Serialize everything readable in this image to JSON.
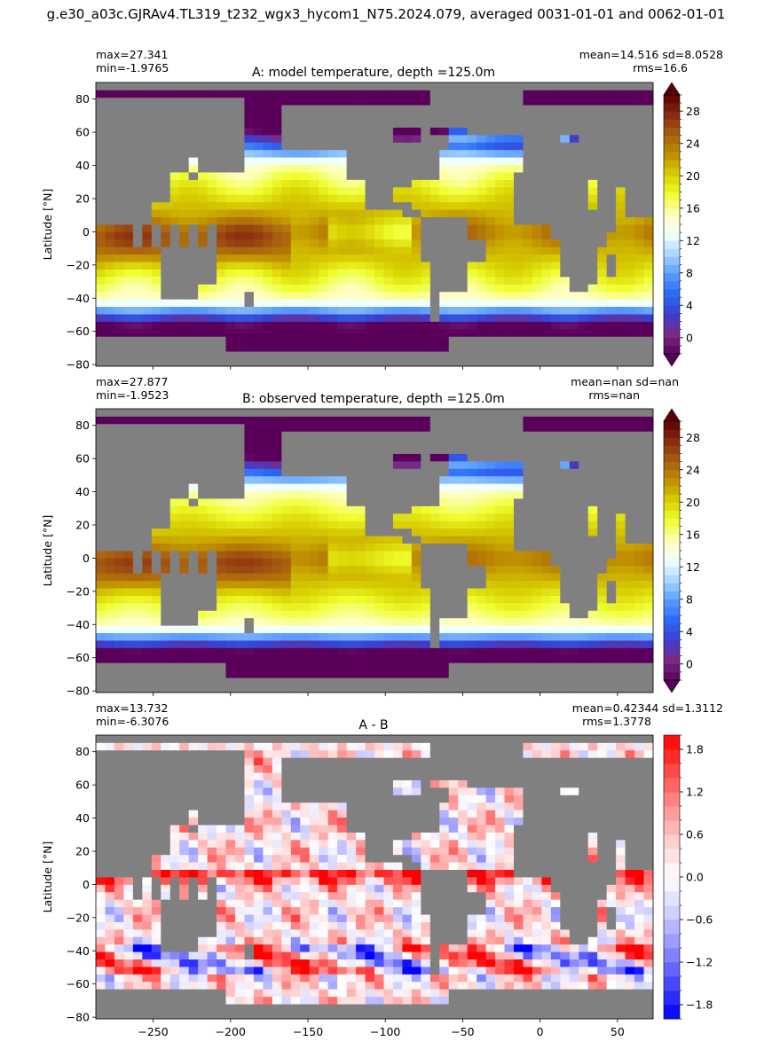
{
  "figure": {
    "suptitle": "g.e30_a03c.GJRAv4.TL319_t232_wgx3_hycom1_N75.2024.079, averaged 0031-01-01 and 0062-01-01"
  },
  "colors": {
    "land": "#808080",
    "temperature_colormap": [
      "#5a005a",
      "#7a2a86",
      "#3a3fd0",
      "#2a6af5",
      "#5a9bff",
      "#a8d6ff",
      "#f0ffff",
      "#ffffc0",
      "#f0ff30",
      "#d8d000",
      "#c09000",
      "#a86010",
      "#8a2a10",
      "#5a0000"
    ],
    "difference_colormap": [
      "#0000ff",
      "#4848ff",
      "#9090ff",
      "#d0d0ff",
      "#ffffff",
      "#ffd0d0",
      "#ff9090",
      "#ff4848",
      "#ff0000"
    ]
  },
  "chart_data": [
    {
      "type": "heatmap",
      "title": "A: model temperature, depth =125.0m",
      "ylabel": "Latitude [°N]",
      "xlim": [
        -287,
        73
      ],
      "ylim": [
        -81,
        90
      ],
      "xticks": [
        -250,
        -200,
        -150,
        -100,
        -50,
        0,
        50
      ],
      "yticks": [
        -80,
        -60,
        -40,
        -20,
        0,
        20,
        40,
        60,
        80
      ],
      "show_xtick_labels": false,
      "stats": {
        "max": "max=27.341",
        "min": "min=-1.9765",
        "mean_sd": "mean=14.516 sd=8.0528",
        "rms": "rms=16.6"
      },
      "colorbar": {
        "range": [
          -2,
          30
        ],
        "extend": "both",
        "ticks": [
          0,
          4,
          8,
          12,
          16,
          20,
          24,
          28
        ],
        "minor_step": 1
      },
      "field": "model"
    },
    {
      "type": "heatmap",
      "title": "B: observed temperature, depth =125.0m",
      "ylabel": "Latitude [°N]",
      "xlim": [
        -287,
        73
      ],
      "ylim": [
        -81,
        90
      ],
      "xticks": [
        -250,
        -200,
        -150,
        -100,
        -50,
        0,
        50
      ],
      "yticks": [
        -80,
        -60,
        -40,
        -20,
        0,
        20,
        40,
        60,
        80
      ],
      "show_xtick_labels": false,
      "stats": {
        "max": "max=27.877",
        "min": "min=-1.9523",
        "mean_sd": "mean=nan sd=nan",
        "rms": "rms=nan"
      },
      "colorbar": {
        "range": [
          -2,
          30
        ],
        "extend": "both",
        "ticks": [
          0,
          4,
          8,
          12,
          16,
          20,
          24,
          28
        ],
        "minor_step": 1
      },
      "field": "observed"
    },
    {
      "type": "heatmap",
      "title": "A - B",
      "ylabel": "Latitude [°N]",
      "xlim": [
        -287,
        73
      ],
      "ylim": [
        -81,
        90
      ],
      "xticks": [
        -250,
        -200,
        -150,
        -100,
        -50,
        0,
        50
      ],
      "yticks": [
        -80,
        -60,
        -40,
        -20,
        0,
        20,
        40,
        60,
        80
      ],
      "show_xtick_labels": true,
      "stats": {
        "max": "max=13.732",
        "min": "min=-6.3076",
        "mean_sd": "mean=0.42344 sd=1.3112",
        "rms": "rms=1.3778"
      },
      "colorbar": {
        "range": [
          -2,
          2
        ],
        "extend": "neither",
        "ticks": [
          -1.8,
          -1.2,
          -0.6,
          0.0,
          0.6,
          1.2,
          1.8
        ],
        "tick_labels": [
          "−1.8",
          "−1.2",
          "−0.6",
          "0.0",
          "0.6",
          "1.2",
          "1.8"
        ],
        "minor_step": 0.2
      },
      "field": "difference"
    }
  ]
}
